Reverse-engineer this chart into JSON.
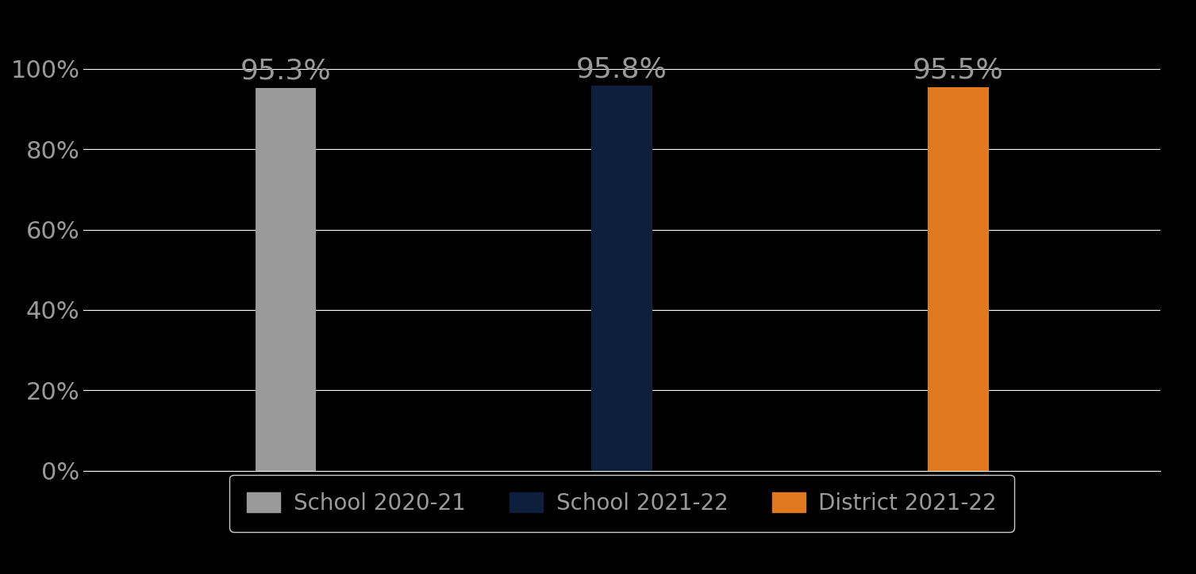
{
  "categories": [
    "School 2020-21",
    "School 2021-22",
    "District 2021-22"
  ],
  "values": [
    0.953,
    0.958,
    0.955
  ],
  "bar_colors": [
    "#9a9a9a",
    "#0d1f3c",
    "#e07820"
  ],
  "bar_labels": [
    "95.3%",
    "95.8%",
    "95.5%"
  ],
  "ylim": [
    0,
    1.0
  ],
  "yticks": [
    0,
    0.2,
    0.4,
    0.6,
    0.8,
    1.0
  ],
  "ytick_labels": [
    "0%",
    "20%",
    "40%",
    "60%",
    "80%",
    "100%"
  ],
  "background_color": "#000000",
  "text_color": "#9a9a9a",
  "grid_color": "#ffffff",
  "tick_fontsize": 22,
  "bar_label_fontsize": 26,
  "legend_fontsize": 20,
  "bar_width": 0.18,
  "bar_positions": [
    1,
    2,
    3
  ],
  "xlim": [
    0.4,
    3.6
  ]
}
